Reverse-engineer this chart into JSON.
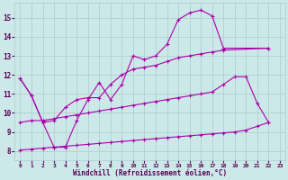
{
  "xlabel": "Windchill (Refroidissement éolien,°C)",
  "background_color": "#cde8e8",
  "grid_color": "#aacccc",
  "line_color": "#aa00aa",
  "xlim": [
    -0.5,
    23.5
  ],
  "ylim": [
    7.5,
    15.8
  ],
  "xticks": [
    0,
    1,
    2,
    3,
    4,
    5,
    6,
    7,
    8,
    9,
    10,
    11,
    12,
    13,
    14,
    15,
    16,
    17,
    18,
    19,
    20,
    21,
    22,
    23
  ],
  "yticks": [
    8,
    9,
    10,
    11,
    12,
    13,
    14,
    15
  ],
  "series": {
    "top_curve": {
      "x": [
        0,
        1,
        2,
        3,
        4,
        5,
        6,
        7,
        8,
        9,
        10,
        11,
        12,
        13,
        14,
        15,
        16,
        17,
        18,
        22
      ],
      "y": [
        11.8,
        10.9,
        9.5,
        8.2,
        8.2,
        9.6,
        10.7,
        11.6,
        10.7,
        11.5,
        13.0,
        12.8,
        13.0,
        13.6,
        14.9,
        15.25,
        15.4,
        15.1,
        13.4,
        13.4
      ]
    },
    "upper_mid": {
      "x": [
        0,
        1,
        2,
        3,
        4,
        5,
        6,
        7,
        8,
        9,
        10,
        11,
        12,
        13,
        14,
        15,
        16,
        17,
        18,
        22
      ],
      "y": [
        11.8,
        10.9,
        9.5,
        9.6,
        10.3,
        10.7,
        10.8,
        10.8,
        11.5,
        12.0,
        12.3,
        12.4,
        12.5,
        12.7,
        12.9,
        13.0,
        13.1,
        13.2,
        13.3,
        13.4
      ]
    },
    "lower_mid": {
      "x": [
        0,
        1,
        2,
        3,
        4,
        5,
        6,
        7,
        8,
        9,
        10,
        11,
        12,
        13,
        14,
        15,
        16,
        17,
        18,
        19,
        20,
        21,
        22
      ],
      "y": [
        9.5,
        9.6,
        9.6,
        9.7,
        9.8,
        9.9,
        10.0,
        10.1,
        10.2,
        10.3,
        10.4,
        10.5,
        10.6,
        10.7,
        10.8,
        10.9,
        11.0,
        11.1,
        11.5,
        11.9,
        11.9,
        10.5,
        9.5
      ]
    },
    "bottom_line": {
      "x": [
        0,
        1,
        2,
        3,
        4,
        5,
        6,
        7,
        8,
        9,
        10,
        11,
        12,
        13,
        14,
        15,
        16,
        17,
        18,
        19,
        20,
        21,
        22
      ],
      "y": [
        8.05,
        8.1,
        8.15,
        8.2,
        8.25,
        8.3,
        8.35,
        8.4,
        8.45,
        8.5,
        8.55,
        8.6,
        8.65,
        8.7,
        8.75,
        8.8,
        8.85,
        8.9,
        8.95,
        9.0,
        9.1,
        9.3,
        9.5
      ]
    }
  }
}
